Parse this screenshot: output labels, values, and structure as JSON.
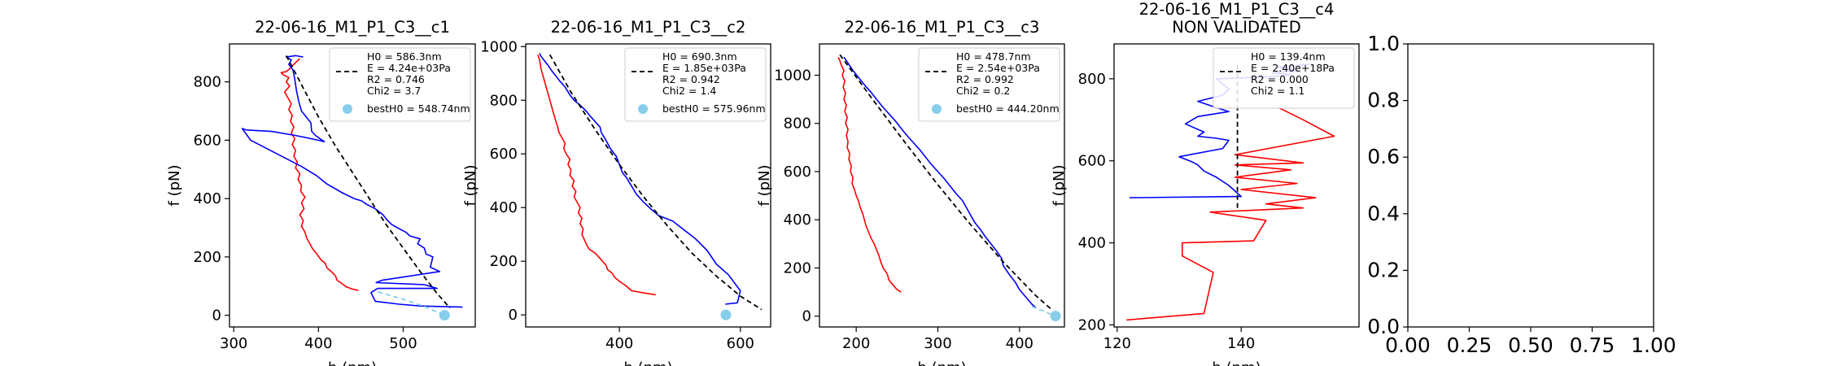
{
  "chart_data": [
    {
      "type": "line",
      "title": "22-06-16_M1_P1_C3__c1",
      "subtitle": "",
      "xlabel": "h (nm)",
      "ylabel": "f (pN)",
      "xlim": [
        295,
        585
      ],
      "ylim": [
        -40,
        930
      ],
      "xticks": [
        300,
        400,
        500
      ],
      "yticks": [
        0,
        200,
        400,
        600,
        800
      ],
      "legend": {
        "placement": "top-right",
        "entries": [
          "H0 = 586.3nm",
          "E = 4.24e+03Pa",
          "R2 = 0.746",
          "Chi2 = 3.7"
        ],
        "point_label": "bestH0 = 548.74nm"
      },
      "series": [
        {
          "color": "#ff0000",
          "x": [
            447,
            440,
            433,
            428,
            422,
            420,
            415,
            410,
            408,
            403,
            398,
            393,
            390,
            386,
            384,
            380,
            382,
            378,
            383,
            380,
            384,
            379,
            380,
            376,
            378,
            373,
            375,
            371,
            373,
            369,
            372,
            368,
            371,
            367,
            369,
            365,
            368,
            364,
            360,
            366,
            362,
            365,
            358,
            356,
            362,
            366,
            371,
            378
          ],
          "y": [
            85,
            90,
            97,
            108,
            120,
            135,
            150,
            162,
            178,
            190,
            210,
            228,
            245,
            265,
            285,
            305,
            325,
            345,
            365,
            385,
            405,
            425,
            445,
            465,
            485,
            505,
            525,
            545,
            565,
            585,
            605,
            625,
            645,
            665,
            685,
            705,
            725,
            745,
            765,
            785,
            800,
            815,
            825,
            832,
            835,
            845,
            860,
            880
          ]
        },
        {
          "color": "#0000ff",
          "x": [
            570,
            545,
            520,
            495,
            467,
            462,
            470,
            540,
            525,
            468,
            475,
            543,
            532,
            535,
            527,
            525,
            517,
            520,
            508,
            503,
            493,
            486,
            480,
            476,
            467,
            457,
            451,
            442,
            428,
            410,
            397,
            380,
            360,
            340,
            320,
            310,
            315,
            345,
            375,
            400,
            407,
            397,
            392,
            391,
            380,
            377,
            374,
            372,
            370,
            365,
            368,
            362,
            373,
            382
          ],
          "y": [
            28,
            30,
            32,
            38,
            48,
            78,
            92,
            92,
            105,
            112,
            120,
            150,
            165,
            200,
            210,
            230,
            245,
            262,
            272,
            285,
            300,
            312,
            330,
            345,
            365,
            380,
            392,
            400,
            420,
            450,
            480,
            510,
            540,
            570,
            600,
            640,
            635,
            630,
            615,
            600,
            595,
            615,
            630,
            660,
            700,
            730,
            770,
            810,
            840,
            860,
            875,
            885,
            890,
            885
          ]
        },
        {
          "color": "#000000",
          "dash": true,
          "x": [
            362,
            380,
            400,
            420,
            440,
            460,
            480,
            500,
            520,
            540,
            555
          ],
          "y": [
            890,
            790,
            680,
            580,
            490,
            400,
            310,
            230,
            150,
            75,
            25
          ]
        },
        {
          "color": "#87ceeb",
          "dash": true,
          "x": [
            470,
            500,
            525,
            549
          ],
          "y": [
            80,
            55,
            30,
            0
          ]
        }
      ],
      "best_point": {
        "x": 548.74,
        "y": 0,
        "color": "#87ceeb"
      }
    },
    {
      "type": "line",
      "title": "22-06-16_M1_P1_C3__c2",
      "subtitle": "",
      "xlabel": "h (nm)",
      "ylabel": "f (pN)",
      "xlim": [
        245,
        650
      ],
      "ylim": [
        -45,
        1010
      ],
      "xticks": [
        400,
        600
      ],
      "yticks": [
        0,
        200,
        400,
        600,
        800,
        1000
      ],
      "legend": {
        "placement": "top-right",
        "entries": [
          "H0 = 690.3nm",
          "E = 1.85e+03Pa",
          "R2 = 0.942",
          "Chi2 = 1.4"
        ],
        "point_label": "bestH0 = 575.96nm"
      },
      "series": [
        {
          "color": "#ff0000",
          "x": [
            460,
            440,
            420,
            410,
            400,
            392,
            388,
            380,
            378,
            372,
            366,
            360,
            350,
            346,
            342,
            338,
            340,
            335,
            338,
            332,
            335,
            330,
            325,
            328,
            322,
            325,
            318,
            320,
            315,
            318,
            312,
            308,
            310,
            305,
            300,
            298,
            295,
            290,
            285,
            280,
            275,
            270,
            268,
            265
          ],
          "y": [
            75,
            82,
            90,
            110,
            125,
            140,
            155,
            170,
            185,
            200,
            215,
            230,
            245,
            260,
            280,
            300,
            320,
            340,
            360,
            380,
            400,
            420,
            440,
            460,
            480,
            500,
            520,
            540,
            560,
            580,
            600,
            620,
            640,
            660,
            680,
            700,
            720,
            760,
            800,
            840,
            880,
            920,
            950,
            970
          ]
        },
        {
          "color": "#0000ff",
          "x": [
            575,
            595,
            600,
            590,
            580,
            560,
            545,
            525,
            505,
            488,
            465,
            452,
            440,
            428,
            420,
            412,
            405,
            400,
            395,
            385,
            378,
            370,
            368,
            360,
            352,
            345,
            336,
            325,
            318,
            310,
            302,
            295,
            288,
            282,
            275,
            270,
            268
          ],
          "y": [
            40,
            45,
            90,
            120,
            150,
            190,
            240,
            285,
            320,
            350,
            370,
            395,
            420,
            450,
            480,
            510,
            530,
            560,
            590,
            620,
            650,
            680,
            700,
            720,
            740,
            760,
            780,
            800,
            820,
            850,
            870,
            890,
            910,
            930,
            950,
            965,
            975
          ]
        },
        {
          "color": "#000000",
          "dash": true,
          "x": [
            285,
            320,
            360,
            400,
            440,
            480,
            520,
            560,
            600,
            635
          ],
          "y": [
            970,
            830,
            690,
            560,
            440,
            330,
            230,
            145,
            70,
            20
          ]
        }
      ],
      "best_point": {
        "x": 575.96,
        "y": 0,
        "color": "#87ceeb"
      }
    },
    {
      "type": "line",
      "title": "22-06-16_M1_P1_C3__c3",
      "subtitle": "",
      "xlabel": "h (nm)",
      "ylabel": "f (pN)",
      "xlim": [
        155,
        455
      ],
      "ylim": [
        -45,
        1130
      ],
      "xticks": [
        200,
        300,
        400
      ],
      "yticks": [
        0,
        200,
        400,
        600,
        800,
        1000
      ],
      "legend": {
        "placement": "top-right",
        "entries": [
          "H0 = 478.7nm",
          "E = 2.54e+03Pa",
          "R2 = 0.992",
          "Chi2 = 0.2"
        ],
        "point_label": "bestH0 = 444.20nm"
      },
      "series": [
        {
          "color": "#ff0000",
          "x": [
            255,
            250,
            245,
            240,
            238,
            233,
            230,
            228,
            225,
            222,
            218,
            215,
            212,
            210,
            208,
            205,
            203,
            200,
            198,
            195,
            196,
            193,
            194,
            191,
            192,
            189,
            190,
            188,
            190,
            187,
            189,
            186,
            188,
            185,
            187,
            184,
            186,
            183,
            185,
            182,
            180,
            178
          ],
          "y": [
            100,
            110,
            130,
            150,
            175,
            200,
            225,
            250,
            275,
            300,
            325,
            350,
            375,
            400,
            425,
            450,
            475,
            500,
            525,
            550,
            575,
            600,
            625,
            650,
            675,
            700,
            725,
            750,
            775,
            800,
            825,
            850,
            875,
            900,
            925,
            950,
            975,
            1000,
            1020,
            1040,
            1060,
            1075
          ]
        },
        {
          "color": "#0000ff",
          "x": [
            420,
            415,
            410,
            400,
            395,
            388,
            380,
            378,
            372,
            365,
            358,
            352,
            345,
            340,
            335,
            330,
            322,
            315,
            308,
            300,
            292,
            285,
            278,
            270,
            262,
            255,
            248,
            240,
            232,
            225,
            218,
            210,
            203,
            196,
            190,
            185
          ],
          "y": [
            35,
            50,
            70,
            110,
            140,
            170,
            210,
            240,
            270,
            300,
            330,
            360,
            390,
            420,
            450,
            480,
            510,
            540,
            570,
            600,
            630,
            660,
            690,
            720,
            750,
            780,
            810,
            840,
            870,
            900,
            930,
            960,
            990,
            1020,
            1050,
            1075
          ]
        },
        {
          "color": "#000000",
          "dash": true,
          "x": [
            180,
            220,
            260,
            300,
            340,
            380,
            420,
            440
          ],
          "y": [
            1085,
            900,
            720,
            545,
            380,
            225,
            85,
            25
          ]
        },
        {
          "color": "#87ceeb",
          "dash": true,
          "x": [
            415,
            430,
            444
          ],
          "y": [
            40,
            20,
            0
          ]
        }
      ],
      "best_point": {
        "x": 444.2,
        "y": 0,
        "color": "#87ceeb"
      }
    },
    {
      "type": "line",
      "title": "22-06-16_M1_P1_C3__c4",
      "subtitle": "NON VALIDATED",
      "xlabel": "h (nm)",
      "ylabel": "f (pN)",
      "xlim": [
        119.5,
        159
      ],
      "ylim": [
        195,
        885
      ],
      "xticks": [
        120,
        140
      ],
      "yticks": [
        200,
        400,
        600,
        800
      ],
      "legend": {
        "placement": "top-right",
        "entries": [
          "H0 = 139.4nm",
          "E = 2.40e+18Pa",
          "R2 = 0.000",
          "Chi2 = 1.1"
        ],
        "point_label": ""
      },
      "series": [
        {
          "color": "#ff0000",
          "x": [
            121.5,
            134,
            135.5,
            130.5,
            130.5,
            142,
            144,
            135,
            150,
            144,
            152,
            140,
            149,
            139,
            148,
            139,
            150,
            139,
            155,
            150,
            146
          ],
          "y": [
            212,
            228,
            328,
            368,
            400,
            405,
            455,
            475,
            485,
            495,
            510,
            530,
            545,
            560,
            578,
            590,
            595,
            615,
            660,
            700,
            730
          ]
        },
        {
          "color": "#0000ff",
          "x": [
            122,
            140,
            138,
            136,
            134,
            133,
            132,
            130,
            137,
            138,
            136,
            133,
            134,
            131,
            133,
            138,
            135,
            133,
            137,
            138,
            136,
            145,
            148,
            145,
            149,
            146,
            151
          ],
          "y": [
            510,
            513,
            540,
            560,
            575,
            590,
            598,
            610,
            630,
            650,
            655,
            660,
            670,
            690,
            708,
            720,
            735,
            745,
            760,
            775,
            800,
            805,
            810,
            815,
            820,
            828,
            835
          ]
        },
        {
          "color": "#000000",
          "dash": true,
          "x": [
            139.4,
            139.4
          ],
          "y": [
            485,
            835
          ]
        }
      ]
    },
    {
      "type": "line",
      "title": "",
      "xlabel": "",
      "ylabel": "",
      "xlim": [
        0,
        1
      ],
      "ylim": [
        0,
        1
      ],
      "xtick_labels": [
        "0.00",
        "0.25",
        "0.50",
        "0.75",
        "1.00"
      ],
      "ytick_labels": [
        "0.0",
        "0.2",
        "0.4",
        "0.6",
        "0.8",
        "1.0"
      ],
      "series": []
    }
  ]
}
